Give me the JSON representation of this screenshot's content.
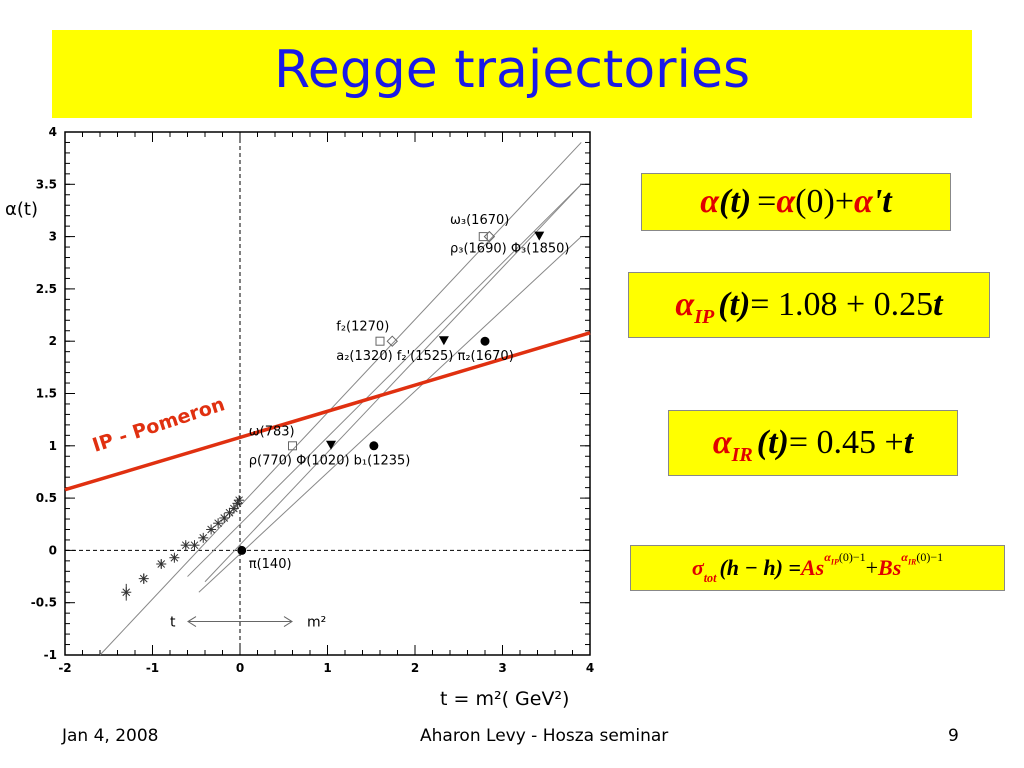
{
  "slide": {
    "title": "Regge trajectories",
    "footer_date": "Jan 4, 2008",
    "footer_center": "Aharon Levy - Hosza seminar",
    "page_number": "9"
  },
  "equations": {
    "eq1": {
      "lhs": "α",
      "arg": "(t)",
      "rhs1": "= ",
      "alpha0": "α",
      "zero": "(0)",
      "plus": " + ",
      "alphap": "α",
      "tail": "'t"
    },
    "eq2": {
      "alpha": "α",
      "sub": "IP",
      "arg": "(t)",
      "rhs": " = 1.08 + 0.25",
      "t": "t"
    },
    "eq3": {
      "alpha": "α",
      "sub": "IR",
      "arg": "(t)",
      "rhs": " = 0.45 + ",
      "t": "t"
    },
    "eq4": {
      "sigma": "σ",
      "sub": "tot",
      "arg": "(h − h) = ",
      "As": "As",
      "exp1": "α",
      "exp1sub": "IP",
      "exp1tail": "(0)−1",
      "plus": " + ",
      "Bs": "Bs",
      "exp2": "α",
      "exp2sub": "IR",
      "exp2tail": "(0)−1"
    }
  },
  "chart_data": {
    "type": "scatter",
    "ylabel": "α(t)",
    "xlabel": "t = m²( GeV²)",
    "xlim": [
      -2,
      4
    ],
    "ylim": [
      -1,
      4
    ],
    "x_ticks": [
      "-2",
      "-1",
      "0",
      "1",
      "2",
      "3",
      "4"
    ],
    "y_ticks": [
      "-1",
      "-0.5",
      "0",
      "0.5",
      "1",
      "1.5",
      "2",
      "2.5",
      "3",
      "3.5",
      "4"
    ],
    "colors": {
      "pomeron": "#e03010",
      "axis": "#000000",
      "traj": "#888888"
    },
    "pomeron": {
      "label": "IP - Pomeron",
      "intercept": 1.08,
      "slope": 0.25
    },
    "trajectories": [
      {
        "x": [
          -1.6,
          3.9
        ],
        "y": [
          -1.0,
          3.9
        ]
      },
      {
        "x": [
          -0.4,
          3.9
        ],
        "y": [
          -0.3,
          3.5
        ]
      },
      {
        "x": [
          -0.47,
          3.9
        ],
        "y": [
          -0.4,
          3.0
        ]
      },
      {
        "x": [
          -0.6,
          3.9
        ],
        "y": [
          -0.25,
          3.5
        ]
      }
    ],
    "scattering_points": [
      {
        "x": -1.3,
        "y": -0.4,
        "err": 0.08
      },
      {
        "x": -1.1,
        "y": -0.27,
        "err": 0.05
      },
      {
        "x": -0.9,
        "y": -0.13,
        "err": 0.04
      },
      {
        "x": -0.75,
        "y": -0.07,
        "err": 0.03
      },
      {
        "x": -0.62,
        "y": 0.05,
        "err": 0.03
      },
      {
        "x": -0.52,
        "y": 0.05,
        "err": 0.02
      },
      {
        "x": -0.42,
        "y": 0.12,
        "err": 0.02
      },
      {
        "x": -0.33,
        "y": 0.2,
        "err": 0.02
      },
      {
        "x": -0.25,
        "y": 0.26,
        "err": 0.02
      },
      {
        "x": -0.18,
        "y": 0.31,
        "err": 0.02
      },
      {
        "x": -0.12,
        "y": 0.36,
        "err": 0.02
      },
      {
        "x": -0.07,
        "y": 0.4,
        "err": 0.02
      },
      {
        "x": -0.03,
        "y": 0.45,
        "err": 0.02
      },
      {
        "x": -0.01,
        "y": 0.48,
        "err": 0.02
      }
    ],
    "mesons": [
      {
        "x": 0.02,
        "y": 0.0,
        "marker": "circle"
      },
      {
        "x": 0.6,
        "y": 1.0,
        "marker": "open-square"
      },
      {
        "x": 1.04,
        "y": 1.0,
        "marker": "triangle"
      },
      {
        "x": 1.53,
        "y": 1.0,
        "marker": "circle"
      },
      {
        "x": 1.6,
        "y": 2.0,
        "marker": "open-square"
      },
      {
        "x": 1.74,
        "y": 2.0,
        "marker": "open-diamond"
      },
      {
        "x": 2.33,
        "y": 2.0,
        "marker": "triangle"
      },
      {
        "x": 2.8,
        "y": 2.0,
        "marker": "circle"
      },
      {
        "x": 2.78,
        "y": 3.0,
        "marker": "open-square"
      },
      {
        "x": 2.85,
        "y": 3.0,
        "marker": "open-diamond"
      },
      {
        "x": 3.42,
        "y": 3.0,
        "marker": "triangle"
      }
    ],
    "meson_labels": [
      {
        "text": "π(140)",
        "x": 0.1,
        "y": -0.17
      },
      {
        "text": "ω(783)",
        "x": 0.1,
        "y": 1.1
      },
      {
        "text": "ρ(770)  Φ(1020)  b₁(1235)",
        "x": 0.1,
        "y": 0.82
      },
      {
        "text": "f₂(1270)",
        "x": 1.1,
        "y": 2.1
      },
      {
        "text": "a₂(1320)  f₂'(1525)  π₂(1670)",
        "x": 1.1,
        "y": 1.82
      },
      {
        "text": "ω₃(1670)",
        "x": 2.4,
        "y": 3.12
      },
      {
        "text": "ρ₃(1690)  Φ₃(1850)",
        "x": 2.4,
        "y": 2.85
      }
    ],
    "annotation": {
      "left": "t",
      "right": "m²",
      "y": -0.68
    }
  }
}
